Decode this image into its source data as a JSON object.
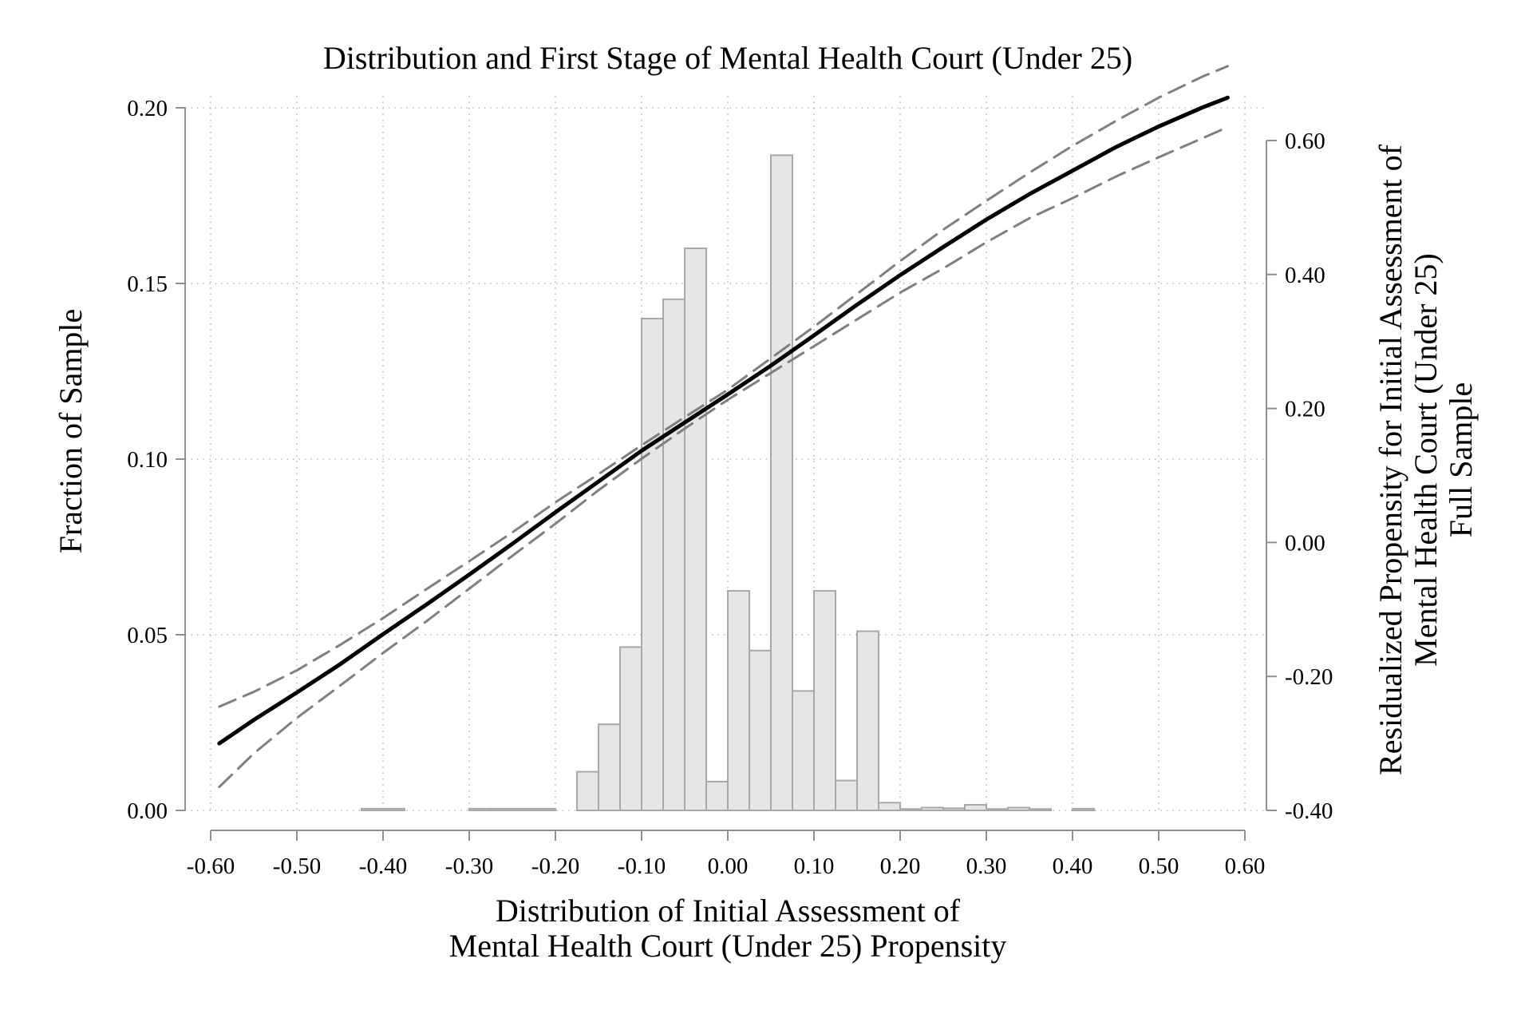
{
  "chart_data": {
    "type": "bar+line",
    "title": "Distribution and First Stage of Mental Health Court (Under 25)",
    "xlabel_lines": [
      "Distribution of Initial Assessment of",
      "Mental Health Court (Under 25) Propensity"
    ],
    "ylabel_left": "Fraction of Sample",
    "ylabel_right_lines": [
      "Residualized Propensity for Initial Assessment of",
      "Mental Health Court (Under 25)",
      "Full Sample"
    ],
    "xlim": [
      -0.6,
      0.6
    ],
    "ylim_left": [
      0,
      0.2
    ],
    "ylim_right": [
      -0.4,
      0.6
    ],
    "x_ticks": [
      "-0.60",
      "-0.50",
      "-0.40",
      "-0.30",
      "-0.20",
      "-0.10",
      "0.00",
      "0.10",
      "0.20",
      "0.30",
      "0.40",
      "0.50",
      "0.60"
    ],
    "y_left_ticks": [
      "0.00",
      "0.05",
      "0.10",
      "0.15",
      "0.20"
    ],
    "y_right_ticks": [
      "-0.40",
      "-0.20",
      "0.00",
      "0.20",
      "0.40",
      "0.60"
    ],
    "grid": true,
    "bin_width": 0.025,
    "histogram": {
      "bin_centers": [
        -0.4125,
        -0.3875,
        -0.2875,
        -0.2625,
        -0.2375,
        -0.2125,
        -0.1625,
        -0.1375,
        -0.1125,
        -0.0875,
        -0.0625,
        -0.0375,
        -0.0125,
        0.0125,
        0.0375,
        0.0625,
        0.0875,
        0.1125,
        0.1375,
        0.1625,
        0.1875,
        0.2125,
        0.2375,
        0.2625,
        0.2875,
        0.3125,
        0.3375,
        0.3625,
        0.4125
      ],
      "values": [
        0.0005,
        0.0005,
        0.0005,
        0.0005,
        0.0005,
        0.0005,
        0.011,
        0.0245,
        0.0465,
        0.14,
        0.1455,
        0.16,
        0.0082,
        0.0625,
        0.0455,
        0.1865,
        0.034,
        0.0625,
        0.0085,
        0.051,
        0.0022,
        0.0004,
        0.0008,
        0.0006,
        0.0016,
        0.0004,
        0.0008,
        0.0004,
        0.0005
      ]
    },
    "series": [
      {
        "style": "solid",
        "x": [
          -0.59,
          -0.55,
          -0.5,
          -0.45,
          -0.4,
          -0.35,
          -0.3,
          -0.25,
          -0.2,
          -0.15,
          -0.1,
          -0.05,
          0.0,
          0.05,
          0.1,
          0.15,
          0.2,
          0.25,
          0.3,
          0.35,
          0.4,
          0.45,
          0.5,
          0.55,
          0.58
        ],
        "y": [
          -0.3,
          -0.265,
          -0.224,
          -0.182,
          -0.137,
          -0.093,
          -0.048,
          -0.002,
          0.045,
          0.091,
          0.137,
          0.179,
          0.221,
          0.264,
          0.309,
          0.355,
          0.399,
          0.441,
          0.482,
          0.52,
          0.555,
          0.59,
          0.621,
          0.649,
          0.664
        ]
      },
      {
        "style": "dashed",
        "x": [
          -0.59,
          -0.55,
          -0.5,
          -0.45,
          -0.4,
          -0.35,
          -0.3,
          -0.25,
          -0.2,
          -0.15,
          -0.1,
          -0.05,
          0.0,
          0.05,
          0.1,
          0.15,
          0.2,
          0.25,
          0.3,
          0.35,
          0.4,
          0.45,
          0.5,
          0.55,
          0.58
        ],
        "y": [
          -0.245,
          -0.223,
          -0.191,
          -0.153,
          -0.113,
          -0.07,
          -0.028,
          0.015,
          0.06,
          0.102,
          0.145,
          0.187,
          0.228,
          0.275,
          0.322,
          0.371,
          0.42,
          0.467,
          0.51,
          0.552,
          0.592,
          0.629,
          0.664,
          0.695,
          0.711
        ]
      },
      {
        "style": "dashed",
        "x": [
          -0.59,
          -0.55,
          -0.5,
          -0.45,
          -0.4,
          -0.35,
          -0.3,
          -0.25,
          -0.2,
          -0.15,
          -0.1,
          -0.05,
          0.0,
          0.05,
          0.1,
          0.15,
          0.2,
          0.25,
          0.3,
          0.35,
          0.4,
          0.45,
          0.5,
          0.55,
          0.58
        ],
        "y": [
          -0.365,
          -0.315,
          -0.262,
          -0.214,
          -0.165,
          -0.118,
          -0.069,
          -0.02,
          0.028,
          0.078,
          0.125,
          0.17,
          0.213,
          0.253,
          0.293,
          0.333,
          0.373,
          0.409,
          0.448,
          0.484,
          0.514,
          0.546,
          0.575,
          0.603,
          0.62
        ]
      }
    ]
  }
}
